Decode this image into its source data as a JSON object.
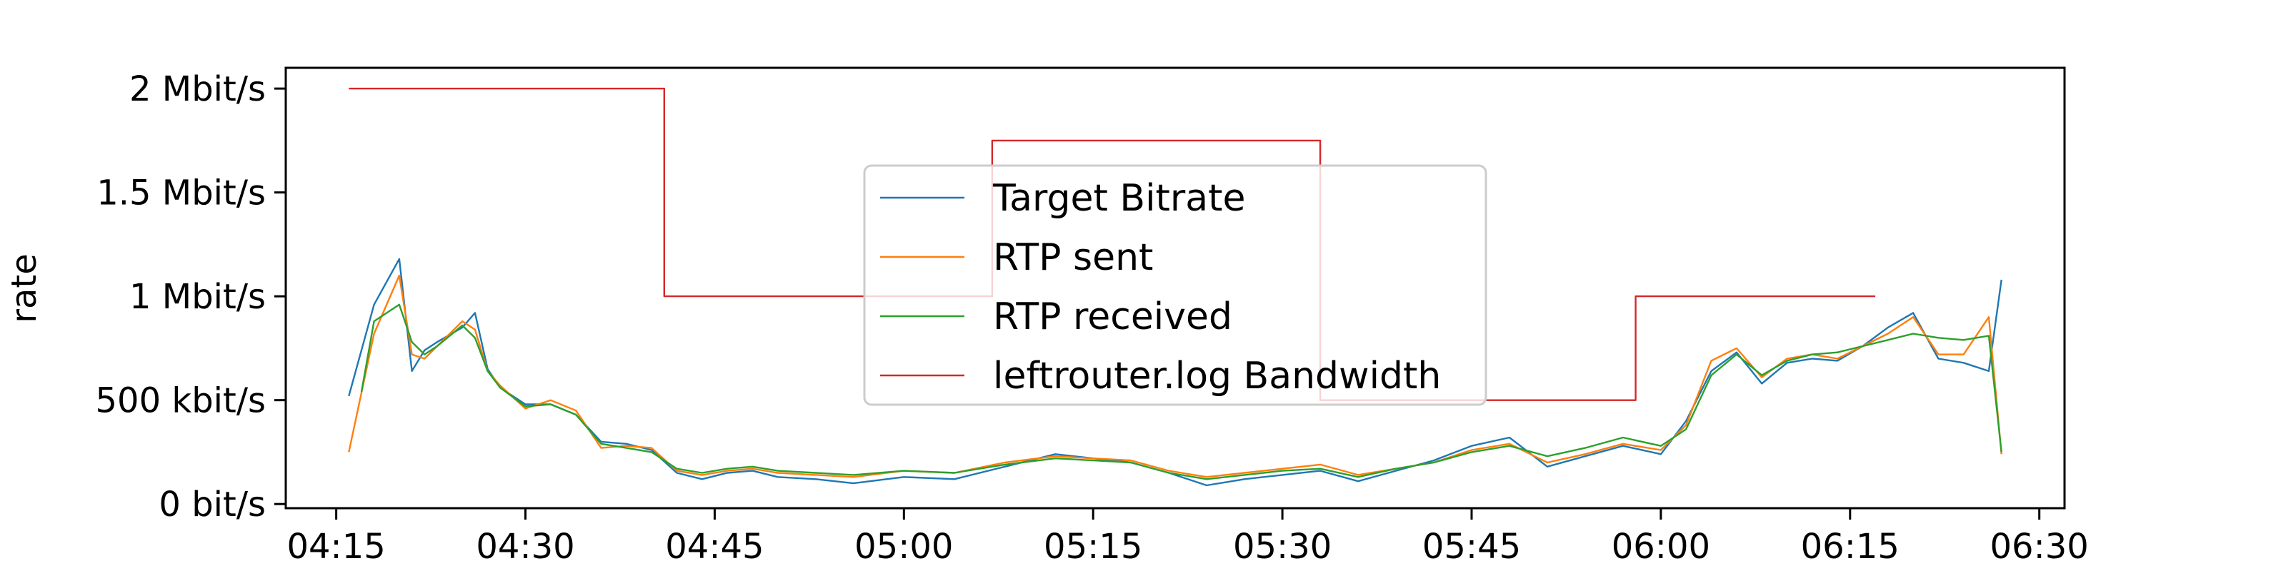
{
  "chart_data": {
    "type": "line",
    "ylabel": "rate",
    "xlim": [
      "04:11",
      "06:32"
    ],
    "ylim": [
      -20000,
      2100000
    ],
    "x_ticks": [
      "04:15",
      "04:30",
      "04:45",
      "05:00",
      "05:15",
      "05:30",
      "05:45",
      "06:00",
      "06:15",
      "06:30"
    ],
    "y_ticks": [
      {
        "value": 0,
        "label": "0 bit/s"
      },
      {
        "value": 500000,
        "label": "500 kbit/s"
      },
      {
        "value": 1000000,
        "label": "1 Mbit/s"
      },
      {
        "value": 1500000,
        "label": "1.5 Mbit/s"
      },
      {
        "value": 2000000,
        "label": "2 Mbit/s"
      }
    ],
    "grid": false,
    "legend_position": "center",
    "series": [
      {
        "name": "Target Bitrate",
        "color": "#1f77b4",
        "x": [
          "04:16",
          "04:18",
          "04:20",
          "04:21",
          "04:22",
          "04:23",
          "04:25",
          "04:26",
          "04:27",
          "04:28",
          "04:30",
          "04:32",
          "04:34",
          "04:36",
          "04:38",
          "04:40",
          "04:42",
          "04:44",
          "04:46",
          "04:48",
          "04:50",
          "04:53",
          "04:56",
          "05:00",
          "05:04",
          "05:08",
          "05:12",
          "05:15",
          "05:18",
          "05:21",
          "05:24",
          "05:27",
          "05:30",
          "05:33",
          "05:36",
          "05:39",
          "05:42",
          "05:45",
          "05:48",
          "05:51",
          "05:54",
          "05:57",
          "06:00",
          "06:02",
          "06:04",
          "06:06",
          "06:08",
          "06:10",
          "06:12",
          "06:14",
          "06:16",
          "06:18",
          "06:20",
          "06:22",
          "06:24",
          "06:26",
          "06:27"
        ],
        "values": [
          520000,
          960000,
          1180000,
          640000,
          740000,
          780000,
          850000,
          920000,
          650000,
          560000,
          480000,
          480000,
          430000,
          300000,
          290000,
          260000,
          150000,
          120000,
          150000,
          160000,
          130000,
          120000,
          100000,
          130000,
          120000,
          180000,
          240000,
          220000,
          200000,
          150000,
          90000,
          120000,
          140000,
          160000,
          110000,
          160000,
          210000,
          280000,
          320000,
          180000,
          230000,
          280000,
          240000,
          400000,
          640000,
          730000,
          580000,
          680000,
          700000,
          690000,
          760000,
          850000,
          920000,
          700000,
          680000,
          640000,
          1080000
        ]
      },
      {
        "name": "RTP sent",
        "color": "#ff7f0e",
        "x": [
          "04:16",
          "04:18",
          "04:20",
          "04:21",
          "04:22",
          "04:23",
          "04:25",
          "04:26",
          "04:27",
          "04:28",
          "04:30",
          "04:32",
          "04:34",
          "04:36",
          "04:38",
          "04:40",
          "04:42",
          "04:44",
          "04:46",
          "04:48",
          "04:50",
          "04:53",
          "04:56",
          "05:00",
          "05:04",
          "05:08",
          "05:12",
          "05:15",
          "05:18",
          "05:21",
          "05:24",
          "05:27",
          "05:30",
          "05:33",
          "05:36",
          "05:39",
          "05:42",
          "05:45",
          "05:48",
          "05:51",
          "05:54",
          "05:57",
          "06:00",
          "06:02",
          "06:04",
          "06:06",
          "06:08",
          "06:10",
          "06:12",
          "06:14",
          "06:16",
          "06:18",
          "06:20",
          "06:22",
          "06:24",
          "06:26",
          "06:27"
        ],
        "values": [
          250000,
          820000,
          1100000,
          720000,
          700000,
          760000,
          880000,
          840000,
          640000,
          570000,
          460000,
          500000,
          450000,
          270000,
          280000,
          270000,
          160000,
          140000,
          160000,
          170000,
          150000,
          140000,
          130000,
          160000,
          150000,
          200000,
          230000,
          220000,
          210000,
          160000,
          130000,
          150000,
          170000,
          190000,
          140000,
          170000,
          200000,
          260000,
          290000,
          200000,
          240000,
          290000,
          260000,
          380000,
          690000,
          750000,
          610000,
          700000,
          720000,
          700000,
          760000,
          820000,
          900000,
          720000,
          720000,
          900000,
          240000
        ]
      },
      {
        "name": "RTP received",
        "color": "#2ca02c",
        "x": [
          "04:17",
          "04:18",
          "04:20",
          "04:21",
          "04:22",
          "04:23",
          "04:25",
          "04:26",
          "04:27",
          "04:28",
          "04:30",
          "04:32",
          "04:34",
          "04:36",
          "04:38",
          "04:40",
          "04:42",
          "04:44",
          "04:46",
          "04:48",
          "04:50",
          "04:53",
          "04:56",
          "05:00",
          "05:04",
          "05:08",
          "05:12",
          "05:15",
          "05:18",
          "05:21",
          "05:24",
          "05:27",
          "05:30",
          "05:33",
          "05:36",
          "05:39",
          "05:42",
          "05:45",
          "05:48",
          "05:51",
          "05:54",
          "05:57",
          "06:00",
          "06:02",
          "06:04",
          "06:06",
          "06:08",
          "06:10",
          "06:12",
          "06:14",
          "06:16",
          "06:18",
          "06:20",
          "06:22",
          "06:24",
          "06:26",
          "06:27"
        ],
        "values": [
          540000,
          880000,
          960000,
          780000,
          720000,
          760000,
          860000,
          800000,
          640000,
          560000,
          470000,
          480000,
          430000,
          290000,
          270000,
          250000,
          170000,
          150000,
          170000,
          180000,
          160000,
          150000,
          140000,
          160000,
          150000,
          190000,
          220000,
          210000,
          200000,
          150000,
          120000,
          140000,
          160000,
          170000,
          130000,
          170000,
          200000,
          250000,
          280000,
          230000,
          270000,
          320000,
          280000,
          360000,
          620000,
          720000,
          620000,
          690000,
          720000,
          730000,
          760000,
          790000,
          820000,
          800000,
          790000,
          810000,
          250000
        ]
      },
      {
        "name": "leftrouter.log Bandwidth",
        "color": "#d62728",
        "step": true,
        "x": [
          "04:16",
          "04:41",
          "04:41",
          "05:07",
          "05:07",
          "05:33",
          "05:33",
          "05:58",
          "05:58",
          "06:17"
        ],
        "values": [
          2000000,
          2000000,
          1000000,
          1000000,
          1750000,
          1750000,
          500000,
          500000,
          1000000,
          1000000
        ]
      }
    ]
  }
}
